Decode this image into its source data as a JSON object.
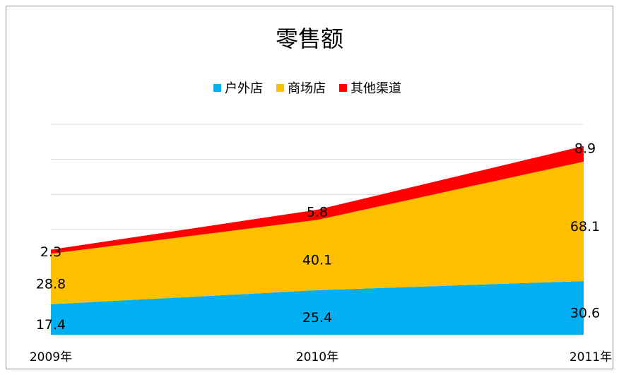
{
  "chart_data": {
    "type": "stacked_area",
    "title": "零售额",
    "categories": [
      "2009年",
      "2010年",
      "2011年"
    ],
    "series": [
      {
        "name": "户外店",
        "color": "#00b0f0",
        "values": [
          17.4,
          25.4,
          30.6
        ]
      },
      {
        "name": "商场店",
        "color": "#ffc000",
        "values": [
          28.8,
          40.1,
          68.1
        ]
      },
      {
        "name": "其他渠道",
        "color": "#ff0000",
        "values": [
          2.3,
          5.8,
          8.9
        ]
      }
    ],
    "ylim": [
      0,
      120
    ],
    "yticks": [
      0,
      20,
      40,
      60,
      80,
      100,
      120
    ],
    "grid": true,
    "legend": "top"
  }
}
